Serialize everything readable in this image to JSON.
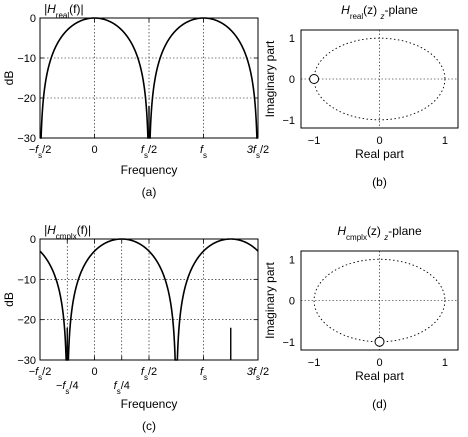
{
  "chart_data": [
    {
      "id": "a",
      "type": "line",
      "title": "|H_real(f)|",
      "title_parts": [
        "|H",
        "real",
        "(f)|"
      ],
      "xlabel": "Frequency",
      "ylabel": "dB",
      "caption": "(a)",
      "xlim": [
        -0.5,
        1.5
      ],
      "ylim": [
        -30,
        0
      ],
      "xticks": [
        {
          "value": -0.5,
          "parts": [
            "−f",
            "s",
            "/2"
          ]
        },
        {
          "value": 0,
          "parts": [
            "0"
          ]
        },
        {
          "value": 0.5,
          "parts": [
            "f",
            "s",
            "/2"
          ]
        },
        {
          "value": 1,
          "parts": [
            "f",
            "s"
          ]
        },
        {
          "value": 1.5,
          "parts": [
            "3f",
            "s",
            "/2"
          ]
        }
      ],
      "yticks": [
        0,
        -10,
        -20,
        -30
      ],
      "grid": true,
      "series": [
        {
          "expression": "20*log10(|cos(pi*f)|)",
          "x_range": [
            -0.5,
            1.5
          ]
        }
      ]
    },
    {
      "id": "b",
      "type": "scatter",
      "title": "H_real(z) z-plane",
      "title_parts": [
        "H",
        "real",
        "(z)  ",
        "z",
        "-plane"
      ],
      "xlabel": "Real part",
      "ylabel": "Imaginary part",
      "caption": "(b)",
      "xlim": [
        -1.2,
        1.2
      ],
      "ylim": [
        -1.2,
        1.2
      ],
      "xticks": [
        -1,
        0,
        1
      ],
      "yticks": [
        1,
        0,
        -1
      ],
      "unit_circle": true,
      "zeros": [
        {
          "x": -1,
          "y": 0
        }
      ]
    },
    {
      "id": "c",
      "type": "line",
      "title": "|H_cmplx(f)|",
      "title_parts": [
        "|H",
        "cmplx",
        "(f)|"
      ],
      "xlabel": "Frequency",
      "ylabel": "dB",
      "caption": "(c)",
      "xlim": [
        -0.5,
        1.5
      ],
      "ylim": [
        -30,
        0
      ],
      "xticks": [
        {
          "value": -0.5,
          "parts": [
            "−f",
            "s",
            "/2"
          ],
          "row": 0
        },
        {
          "value": -0.25,
          "parts": [
            "−f",
            "s",
            "/4"
          ],
          "row": 1
        },
        {
          "value": 0,
          "parts": [
            "0"
          ],
          "row": 0
        },
        {
          "value": 0.25,
          "parts": [
            "f",
            "s",
            "/4"
          ],
          "row": 1
        },
        {
          "value": 0.5,
          "parts": [
            "f",
            "s",
            "/2"
          ],
          "row": 0
        },
        {
          "value": 1,
          "parts": [
            "f",
            "s"
          ],
          "row": 0
        },
        {
          "value": 1.5,
          "parts": [
            "3f",
            "s",
            "/2"
          ],
          "row": 0
        }
      ],
      "yticks": [
        0,
        -10,
        -20,
        -30
      ],
      "grid": true,
      "series": [
        {
          "expression": "20*log10(|cos(pi*(f-0.25))|)",
          "x_range": [
            -0.5,
            1.5
          ]
        }
      ]
    },
    {
      "id": "d",
      "type": "scatter",
      "title": "H_cmplx(z) z-plane",
      "title_parts": [
        "H",
        "cmplx",
        "(z)  ",
        "z",
        "-plane"
      ],
      "xlabel": "Real part",
      "ylabel": "Imaginary part",
      "caption": "(d)",
      "xlim": [
        -1.2,
        1.2
      ],
      "ylim": [
        -1.2,
        1.2
      ],
      "xticks": [
        -1,
        0,
        1
      ],
      "yticks": [
        1,
        0,
        -1
      ],
      "unit_circle": true,
      "zeros": [
        {
          "x": 0,
          "y": -1
        }
      ]
    }
  ]
}
